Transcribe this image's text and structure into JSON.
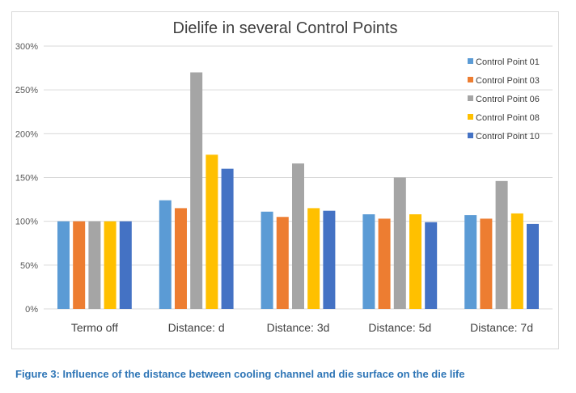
{
  "chart_data": {
    "type": "bar",
    "title": "Dielife in several Control Points",
    "categories": [
      "Termo off",
      "Distance: d",
      "Distance: 3d",
      "Distance: 5d",
      "Distance: 7d"
    ],
    "series": [
      {
        "name": "Control Point 01",
        "color": "#5b9bd5",
        "values": [
          100,
          124,
          111,
          108,
          107
        ]
      },
      {
        "name": "Control Point 03",
        "color": "#ed7d31",
        "values": [
          100,
          115,
          105,
          103,
          103
        ]
      },
      {
        "name": "Control Point 06",
        "color": "#a5a5a5",
        "values": [
          100,
          270,
          166,
          150,
          146
        ]
      },
      {
        "name": "Control Point 08",
        "color": "#ffc000",
        "values": [
          100,
          176,
          115,
          108,
          109
        ]
      },
      {
        "name": "Control Point 10",
        "color": "#4472c4",
        "values": [
          100,
          160,
          112,
          99,
          97
        ]
      }
    ],
    "ylim": [
      0,
      300
    ],
    "yticks": [
      0,
      50,
      100,
      150,
      200,
      250,
      300
    ],
    "ytick_labels": [
      "0%",
      "50%",
      "100%",
      "150%",
      "200%",
      "250%",
      "300%"
    ],
    "grid": true,
    "legend_position": "top-right"
  },
  "caption": "Figure 3: Influence of the distance between cooling channel and die surface on the die life"
}
